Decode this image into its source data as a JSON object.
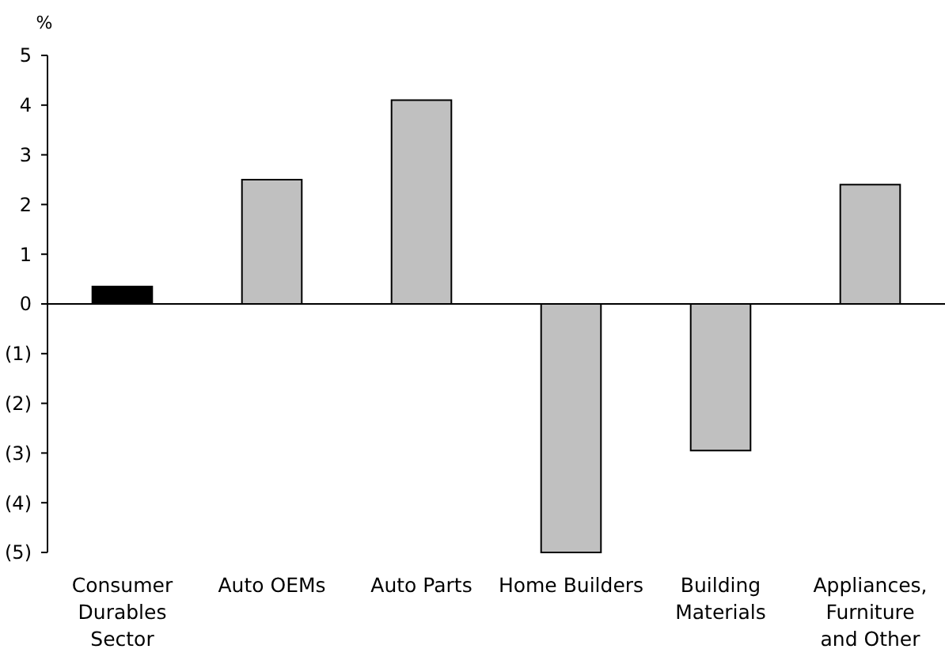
{
  "chart_data": {
    "type": "bar",
    "ylabel": "%",
    "categories": [
      "Consumer Durables Sector",
      "Auto OEMs",
      "Auto Parts",
      "Home Builders",
      "Building Materials",
      "Appliances, Furniture and Other"
    ],
    "values": [
      0.35,
      2.5,
      4.1,
      -5.0,
      -2.95,
      2.4
    ],
    "colors": [
      "#000000",
      "#c0c0c0",
      "#c0c0c0",
      "#c0c0c0",
      "#c0c0c0",
      "#c0c0c0"
    ],
    "ylim": [
      -5,
      5
    ],
    "yticks": [
      {
        "value": -5,
        "label": "(5)"
      },
      {
        "value": -4,
        "label": "(4)"
      },
      {
        "value": -3,
        "label": "(3)"
      },
      {
        "value": -2,
        "label": "(2)"
      },
      {
        "value": -1,
        "label": "(1)"
      },
      0,
      1,
      2,
      3,
      4,
      5
    ]
  }
}
